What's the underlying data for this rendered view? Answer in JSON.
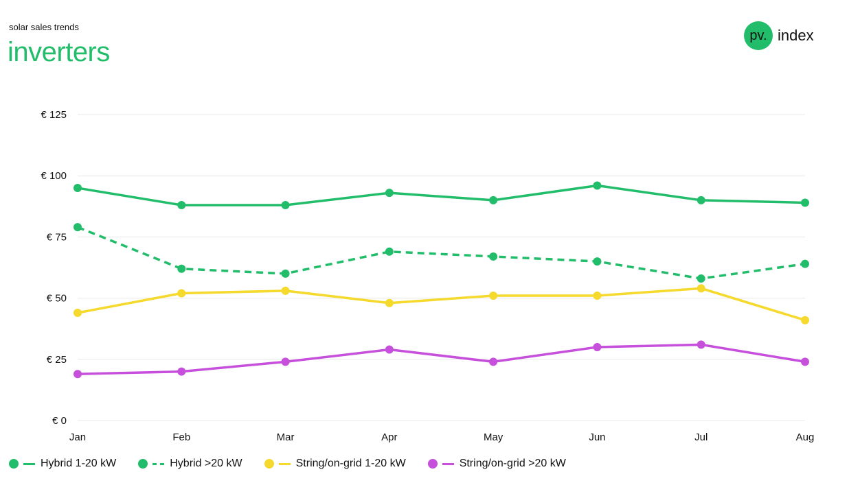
{
  "header": {
    "subtitle": "solar sales trends",
    "title": "inverters"
  },
  "logo": {
    "mark": "pv.",
    "text": "index",
    "color": "#22bd6a"
  },
  "chart_data": {
    "type": "line",
    "categories": [
      "Jan",
      "Feb",
      "Mar",
      "Apr",
      "May",
      "Jun",
      "Jul",
      "Aug"
    ],
    "ylim": [
      0,
      125
    ],
    "yticks": [
      0,
      25,
      50,
      75,
      100,
      125
    ],
    "ytick_labels": [
      "€ 0",
      "€ 25",
      "€ 50",
      "€ 75",
      "€ 100",
      "€ 125"
    ],
    "grid": true,
    "legend_position": "bottom-left",
    "series": [
      {
        "name": "Hybrid 1-20 kW",
        "color": "#22bd6a",
        "dashed": false,
        "values": [
          95,
          88,
          88,
          93,
          90,
          96,
          90,
          89
        ]
      },
      {
        "name": "Hybrid >20 kW",
        "color": "#22bd6a",
        "dashed": true,
        "values": [
          79,
          62,
          60,
          69,
          67,
          65,
          58,
          64
        ]
      },
      {
        "name": "String/on-grid 1-20 kW",
        "color": "#f5d92c",
        "dashed": false,
        "values": [
          44,
          52,
          53,
          48,
          51,
          51,
          54,
          41
        ]
      },
      {
        "name": "String/on-grid >20 kW",
        "color": "#c64fdb",
        "dashed": false,
        "values": [
          19,
          20,
          24,
          29,
          24,
          30,
          31,
          24
        ]
      }
    ]
  }
}
